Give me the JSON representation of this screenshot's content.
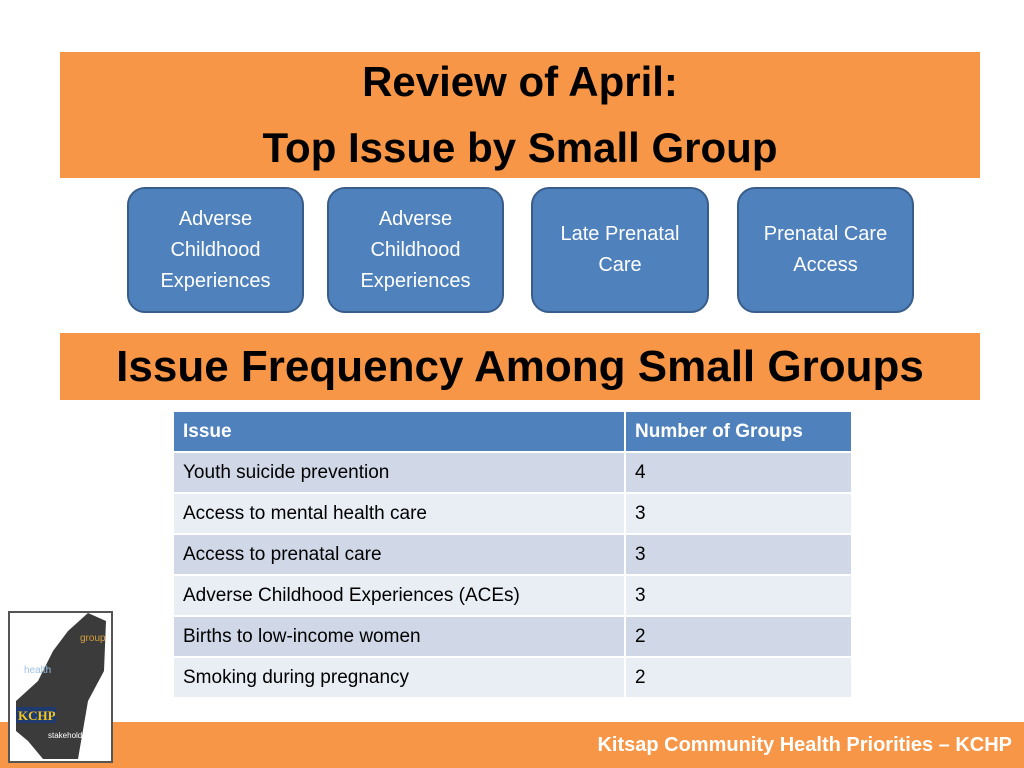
{
  "header": {
    "title_line1": "Review of April:",
    "title_line2": "Top Issue by Small Group"
  },
  "groups": [
    "Adverse Childhood Experiences",
    "Adverse Childhood Experiences",
    "Late Prenatal Care",
    "Prenatal Care Access"
  ],
  "section_title": "Issue Frequency Among Small Groups",
  "table": {
    "columns": [
      "Issue",
      "Number of Groups"
    ],
    "rows": [
      [
        "Youth suicide prevention",
        4
      ],
      [
        "Access to mental health care",
        3
      ],
      [
        "Access to prenatal care",
        3
      ],
      [
        "Adverse Childhood Experiences (ACEs)",
        3
      ],
      [
        "Births to low-income women",
        2
      ],
      [
        "Smoking during pregnancy",
        2
      ]
    ]
  },
  "logo": {
    "name": "KCHP",
    "words": [
      "health",
      "group",
      "stakeholders"
    ]
  },
  "footer": "Kitsap Community Health Priorities – KCHP"
}
